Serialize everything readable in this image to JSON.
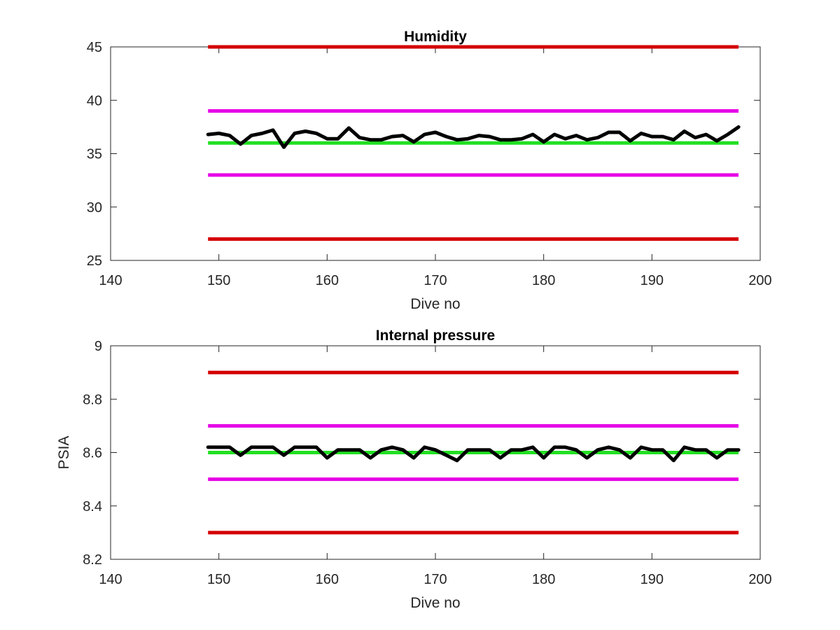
{
  "chart_data": [
    {
      "type": "line",
      "title": "Humidity",
      "xlabel": "Dive no",
      "ylabel": "",
      "xlim": [
        140,
        200
      ],
      "ylim": [
        25,
        45
      ],
      "xticks": [
        140,
        150,
        160,
        170,
        180,
        190,
        200
      ],
      "yticks": [
        25,
        30,
        35,
        40,
        45
      ],
      "grid": false,
      "legend": "none",
      "reference_lines": [
        {
          "y": 45,
          "x": [
            149,
            198
          ],
          "color": "#d40000"
        },
        {
          "y": 39,
          "x": [
            149,
            198
          ],
          "color": "#e600e6"
        },
        {
          "y": 36,
          "x": [
            149,
            198
          ],
          "color": "#22e022"
        },
        {
          "y": 33,
          "x": [
            149,
            198
          ],
          "color": "#e600e6"
        },
        {
          "y": 27,
          "x": [
            149,
            198
          ],
          "color": "#d40000"
        }
      ],
      "series": [
        {
          "color": "#000000",
          "x": [
            149,
            150,
            151,
            152,
            153,
            154,
            155,
            156,
            157,
            158,
            159,
            160,
            161,
            162,
            163,
            164,
            165,
            166,
            167,
            168,
            169,
            170,
            171,
            172,
            173,
            174,
            175,
            176,
            177,
            178,
            179,
            180,
            181,
            182,
            183,
            184,
            185,
            186,
            187,
            188,
            189,
            190,
            191,
            192,
            193,
            194,
            195,
            196,
            197,
            198
          ],
          "values": [
            36.8,
            36.9,
            36.7,
            35.9,
            36.7,
            36.9,
            37.2,
            35.6,
            36.9,
            37.1,
            36.9,
            36.4,
            36.4,
            37.4,
            36.5,
            36.3,
            36.3,
            36.6,
            36.7,
            36.1,
            36.8,
            37.0,
            36.6,
            36.3,
            36.4,
            36.7,
            36.6,
            36.3,
            36.3,
            36.4,
            36.8,
            36.1,
            36.8,
            36.4,
            36.7,
            36.3,
            36.5,
            37.0,
            37.0,
            36.2,
            36.9,
            36.6,
            36.6,
            36.3,
            37.1,
            36.5,
            36.8,
            36.2,
            36.8,
            37.5
          ]
        }
      ]
    },
    {
      "type": "line",
      "title": "Internal pressure",
      "xlabel": "Dive no",
      "ylabel": "PSIA",
      "xlim": [
        140,
        200
      ],
      "ylim": [
        8.2,
        9.0
      ],
      "xticks": [
        140,
        150,
        160,
        170,
        180,
        190,
        200
      ],
      "yticks": [
        8.2,
        8.4,
        8.6,
        8.8,
        9.0
      ],
      "ytick_labels": [
        "8.2",
        "8.4",
        "8.6",
        "8.8",
        "9"
      ],
      "grid": false,
      "legend": "none",
      "reference_lines": [
        {
          "y": 8.9,
          "x": [
            149,
            198
          ],
          "color": "#d40000"
        },
        {
          "y": 8.7,
          "x": [
            149,
            198
          ],
          "color": "#e600e6"
        },
        {
          "y": 8.6,
          "x": [
            149,
            198
          ],
          "color": "#22e022"
        },
        {
          "y": 8.5,
          "x": [
            149,
            198
          ],
          "color": "#e600e6"
        },
        {
          "y": 8.3,
          "x": [
            149,
            198
          ],
          "color": "#d40000"
        }
      ],
      "series": [
        {
          "color": "#000000",
          "x": [
            149,
            150,
            151,
            152,
            153,
            154,
            155,
            156,
            157,
            158,
            159,
            160,
            161,
            162,
            163,
            164,
            165,
            166,
            167,
            168,
            169,
            170,
            171,
            172,
            173,
            174,
            175,
            176,
            177,
            178,
            179,
            180,
            181,
            182,
            183,
            184,
            185,
            186,
            187,
            188,
            189,
            190,
            191,
            192,
            193,
            194,
            195,
            196,
            197,
            198
          ],
          "values": [
            8.62,
            8.62,
            8.62,
            8.59,
            8.62,
            8.62,
            8.62,
            8.59,
            8.62,
            8.62,
            8.62,
            8.58,
            8.61,
            8.61,
            8.61,
            8.58,
            8.61,
            8.62,
            8.61,
            8.58,
            8.62,
            8.61,
            8.59,
            8.57,
            8.61,
            8.61,
            8.61,
            8.58,
            8.61,
            8.61,
            8.62,
            8.58,
            8.62,
            8.62,
            8.61,
            8.58,
            8.61,
            8.62,
            8.61,
            8.58,
            8.62,
            8.61,
            8.61,
            8.57,
            8.62,
            8.61,
            8.61,
            8.58,
            8.61,
            8.61
          ]
        }
      ]
    }
  ]
}
